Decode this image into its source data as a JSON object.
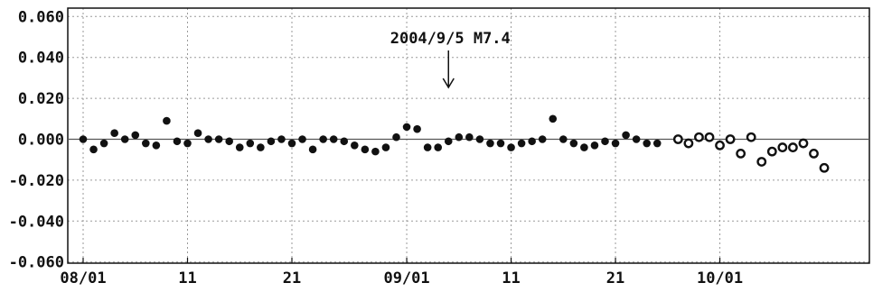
{
  "chart_data": {
    "type": "scatter",
    "ylim": [
      -0.065,
      0.065
    ],
    "yticks": [
      {
        "value": 0.06,
        "label": "0.060"
      },
      {
        "value": 0.04,
        "label": "0.040"
      },
      {
        "value": 0.02,
        "label": "0.020"
      },
      {
        "value": 0.0,
        "label": "0.000"
      },
      {
        "value": -0.02,
        "label": "-0.020"
      },
      {
        "value": -0.04,
        "label": "-0.040"
      },
      {
        "value": -0.06,
        "label": "-0.060"
      }
    ],
    "xticks": [
      {
        "value": "08/01",
        "label": "08/01"
      },
      {
        "value": "08/11",
        "label": "11"
      },
      {
        "value": "08/21",
        "label": "21"
      },
      {
        "value": "09/01",
        "label": "09/01"
      },
      {
        "value": "09/11",
        "label": "11"
      },
      {
        "value": "09/21",
        "label": "21"
      },
      {
        "value": "10/01",
        "label": "10/01"
      }
    ],
    "grid": true,
    "reference_line_y": 0.0,
    "annotation": {
      "text": "2004/9/5 M7.4",
      "x": "09/05"
    },
    "series": [
      {
        "marker": "filled",
        "x": [
          "08/01",
          "08/02",
          "08/03",
          "08/04",
          "08/05",
          "08/06",
          "08/07",
          "08/08",
          "08/09",
          "08/10",
          "08/11",
          "08/12",
          "08/13",
          "08/14",
          "08/15",
          "08/16",
          "08/17",
          "08/18",
          "08/19",
          "08/20",
          "08/21",
          "08/22",
          "08/23",
          "08/24",
          "08/25",
          "08/26",
          "08/27",
          "08/28",
          "08/29",
          "08/30",
          "08/31",
          "09/01",
          "09/02",
          "09/03",
          "09/04",
          "09/05",
          "09/06",
          "09/07",
          "09/08",
          "09/09",
          "09/10",
          "09/11",
          "09/12",
          "09/13",
          "09/14",
          "09/15",
          "09/16",
          "09/17",
          "09/18",
          "09/19",
          "09/20",
          "09/21",
          "09/22",
          "09/23",
          "09/24",
          "09/25"
        ],
        "y": [
          0.0,
          -0.005,
          -0.002,
          0.003,
          0.0,
          0.002,
          -0.002,
          -0.003,
          0.009,
          -0.001,
          -0.002,
          0.003,
          0.0,
          0.0,
          -0.001,
          -0.004,
          -0.002,
          -0.004,
          -0.001,
          0.0,
          -0.002,
          0.0,
          -0.005,
          0.0,
          0.0,
          -0.001,
          -0.003,
          -0.005,
          -0.006,
          -0.004,
          0.001,
          0.006,
          0.005,
          -0.004,
          -0.004,
          -0.001,
          0.001,
          0.001,
          0.0,
          -0.002,
          -0.002,
          -0.004,
          -0.002,
          -0.001,
          0.0,
          0.01,
          0.0,
          -0.002,
          -0.004,
          -0.003,
          -0.001,
          -0.002,
          0.002,
          0.0,
          -0.002,
          -0.002
        ]
      },
      {
        "marker": "open",
        "x": [
          "09/27",
          "09/28",
          "09/29",
          "09/30",
          "10/01",
          "10/02",
          "10/03",
          "10/04",
          "10/05",
          "10/06",
          "10/07",
          "10/08",
          "10/09",
          "10/10",
          "10/11"
        ],
        "y": [
          0.0,
          -0.002,
          0.001,
          0.001,
          -0.003,
          0.0,
          -0.007,
          0.001,
          -0.011,
          -0.006,
          -0.004,
          -0.004,
          -0.002,
          -0.007,
          -0.014
        ]
      }
    ]
  }
}
